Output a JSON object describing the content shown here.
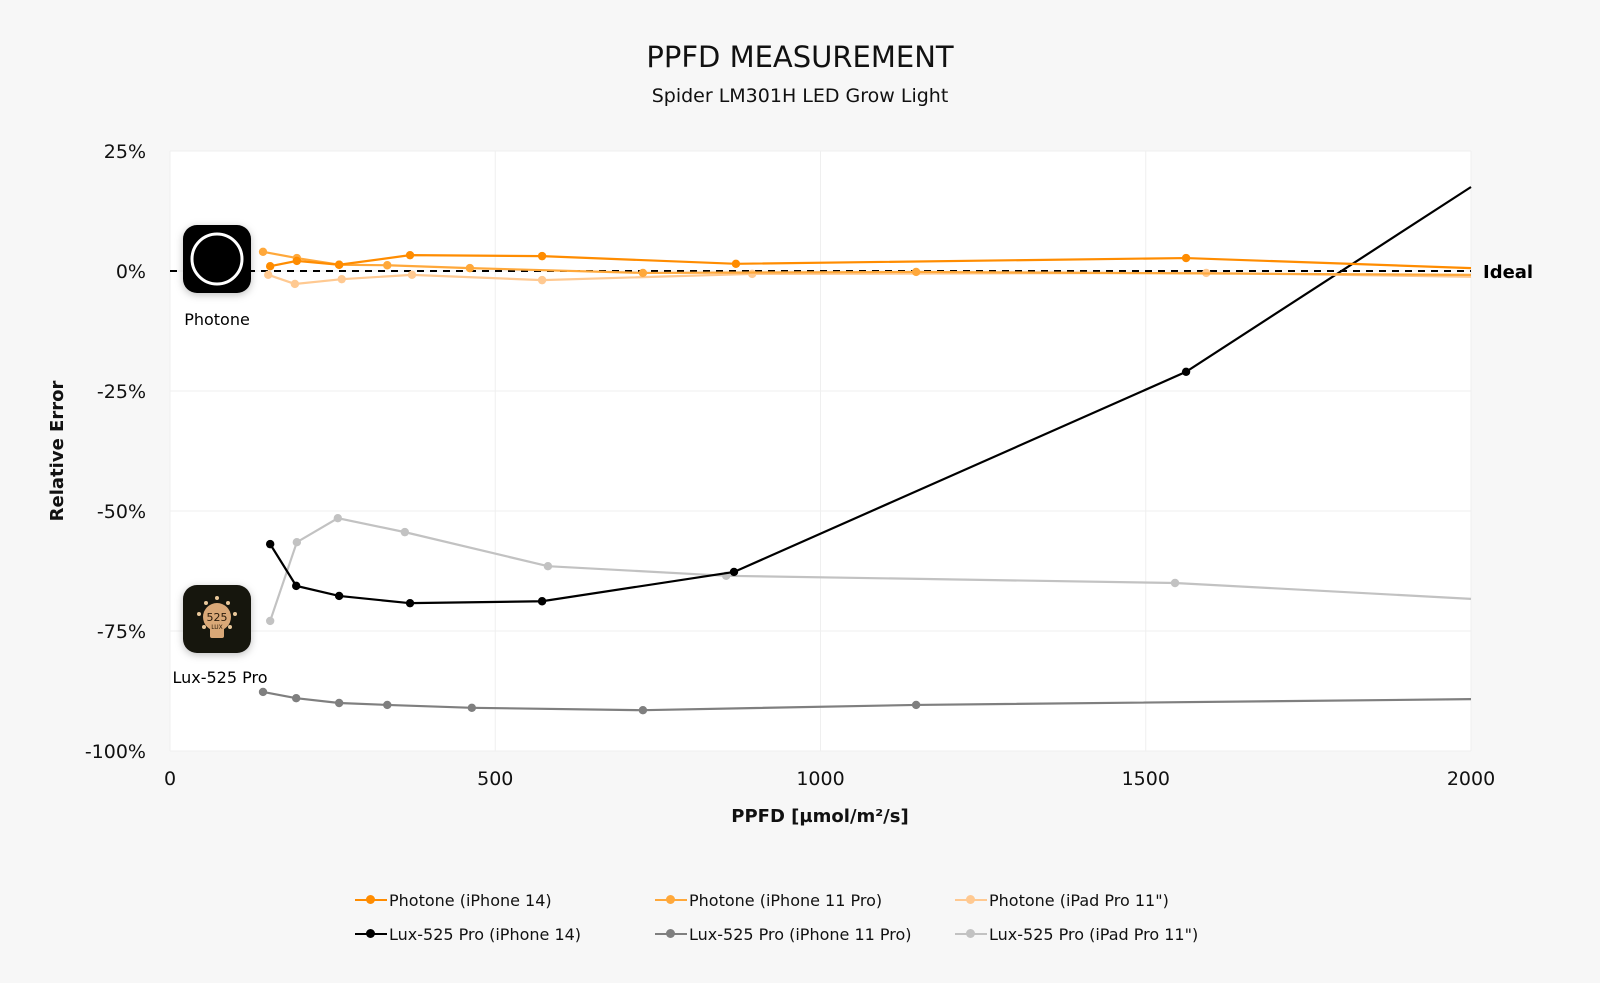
{
  "chart_data": {
    "type": "line",
    "title": "PPFD MEASUREMENT",
    "subtitle": "Spider LM301H LED Grow Light",
    "xlabel": "PPFD [µmol/m²/s]",
    "ylabel": "Relative Error",
    "xlim": [
      0,
      2000
    ],
    "ylim": [
      -100,
      25
    ],
    "xticks": [
      0,
      500,
      1000,
      1500,
      2000
    ],
    "xtick_labels": [
      "0",
      "500",
      "1000",
      "1500",
      "2000"
    ],
    "yticks": [
      25,
      0,
      -25,
      -50,
      -75,
      -100
    ],
    "ytick_labels": [
      "25%",
      "0%",
      "-25%",
      "-50%",
      "-75%",
      "-100%"
    ],
    "grid": true,
    "legend_placement": "bottom",
    "reference_line": {
      "label": "Ideal",
      "y": 0,
      "style": "dashed"
    },
    "app_labels": [
      "Photone",
      "Lux-525 Pro"
    ],
    "series": [
      {
        "name": "Photone (iPhone 14)",
        "color": "#ff8c00",
        "x": [
          154,
          195,
          260,
          369,
          572,
          870,
          1562,
          2000
        ],
        "y": [
          1.0,
          2.1,
          1.3,
          3.3,
          3.1,
          1.5,
          2.7,
          0.6
        ]
      },
      {
        "name": "Photone (iPhone 11 Pro)",
        "color": "#ffa83a",
        "x": [
          143,
          195,
          260,
          334,
          461,
          727,
          1147,
          2000
        ],
        "y": [
          4.0,
          2.7,
          1.3,
          1.2,
          0.6,
          -0.4,
          -0.2,
          -0.8
        ]
      },
      {
        "name": "Photone (iPad Pro 11\")",
        "color": "#ffc991",
        "x": [
          151,
          192,
          264,
          372,
          572,
          895,
          1593,
          2000
        ],
        "y": [
          -0.8,
          -2.7,
          -1.7,
          -0.8,
          -1.9,
          -0.6,
          -0.4,
          -1.2
        ]
      },
      {
        "name": "Lux-525 Pro (iPhone 14)",
        "color": "#000000",
        "x": [
          154,
          194,
          260,
          369,
          572,
          867,
          1562,
          2000
        ],
        "y": [
          -56.9,
          -65.6,
          -67.7,
          -69.2,
          -68.8,
          -62.7,
          -21.0,
          17.5
        ]
      },
      {
        "name": "Lux-525 Pro (iPhone 11 Pro)",
        "color": "#7f7f7f",
        "x": [
          143,
          194,
          260,
          334,
          464,
          727,
          1147,
          2000
        ],
        "y": [
          -87.7,
          -89.0,
          -90.0,
          -90.4,
          -91.0,
          -91.5,
          -90.4,
          -89.2
        ]
      },
      {
        "name": "Lux-525 Pro (iPad Pro 11\")",
        "color": "#c2c2c2",
        "x": [
          154,
          195,
          258,
          361,
          581,
          855,
          1545,
          2000
        ],
        "y": [
          -72.9,
          -56.5,
          -51.5,
          -54.4,
          -61.5,
          -63.5,
          -65.0,
          -68.3
        ]
      }
    ]
  },
  "icons": {
    "photone": "photone-app-icon",
    "lux": "lux-525-app-icon",
    "lux_icon_text": "525",
    "lux_icon_subtext": "LUX"
  }
}
